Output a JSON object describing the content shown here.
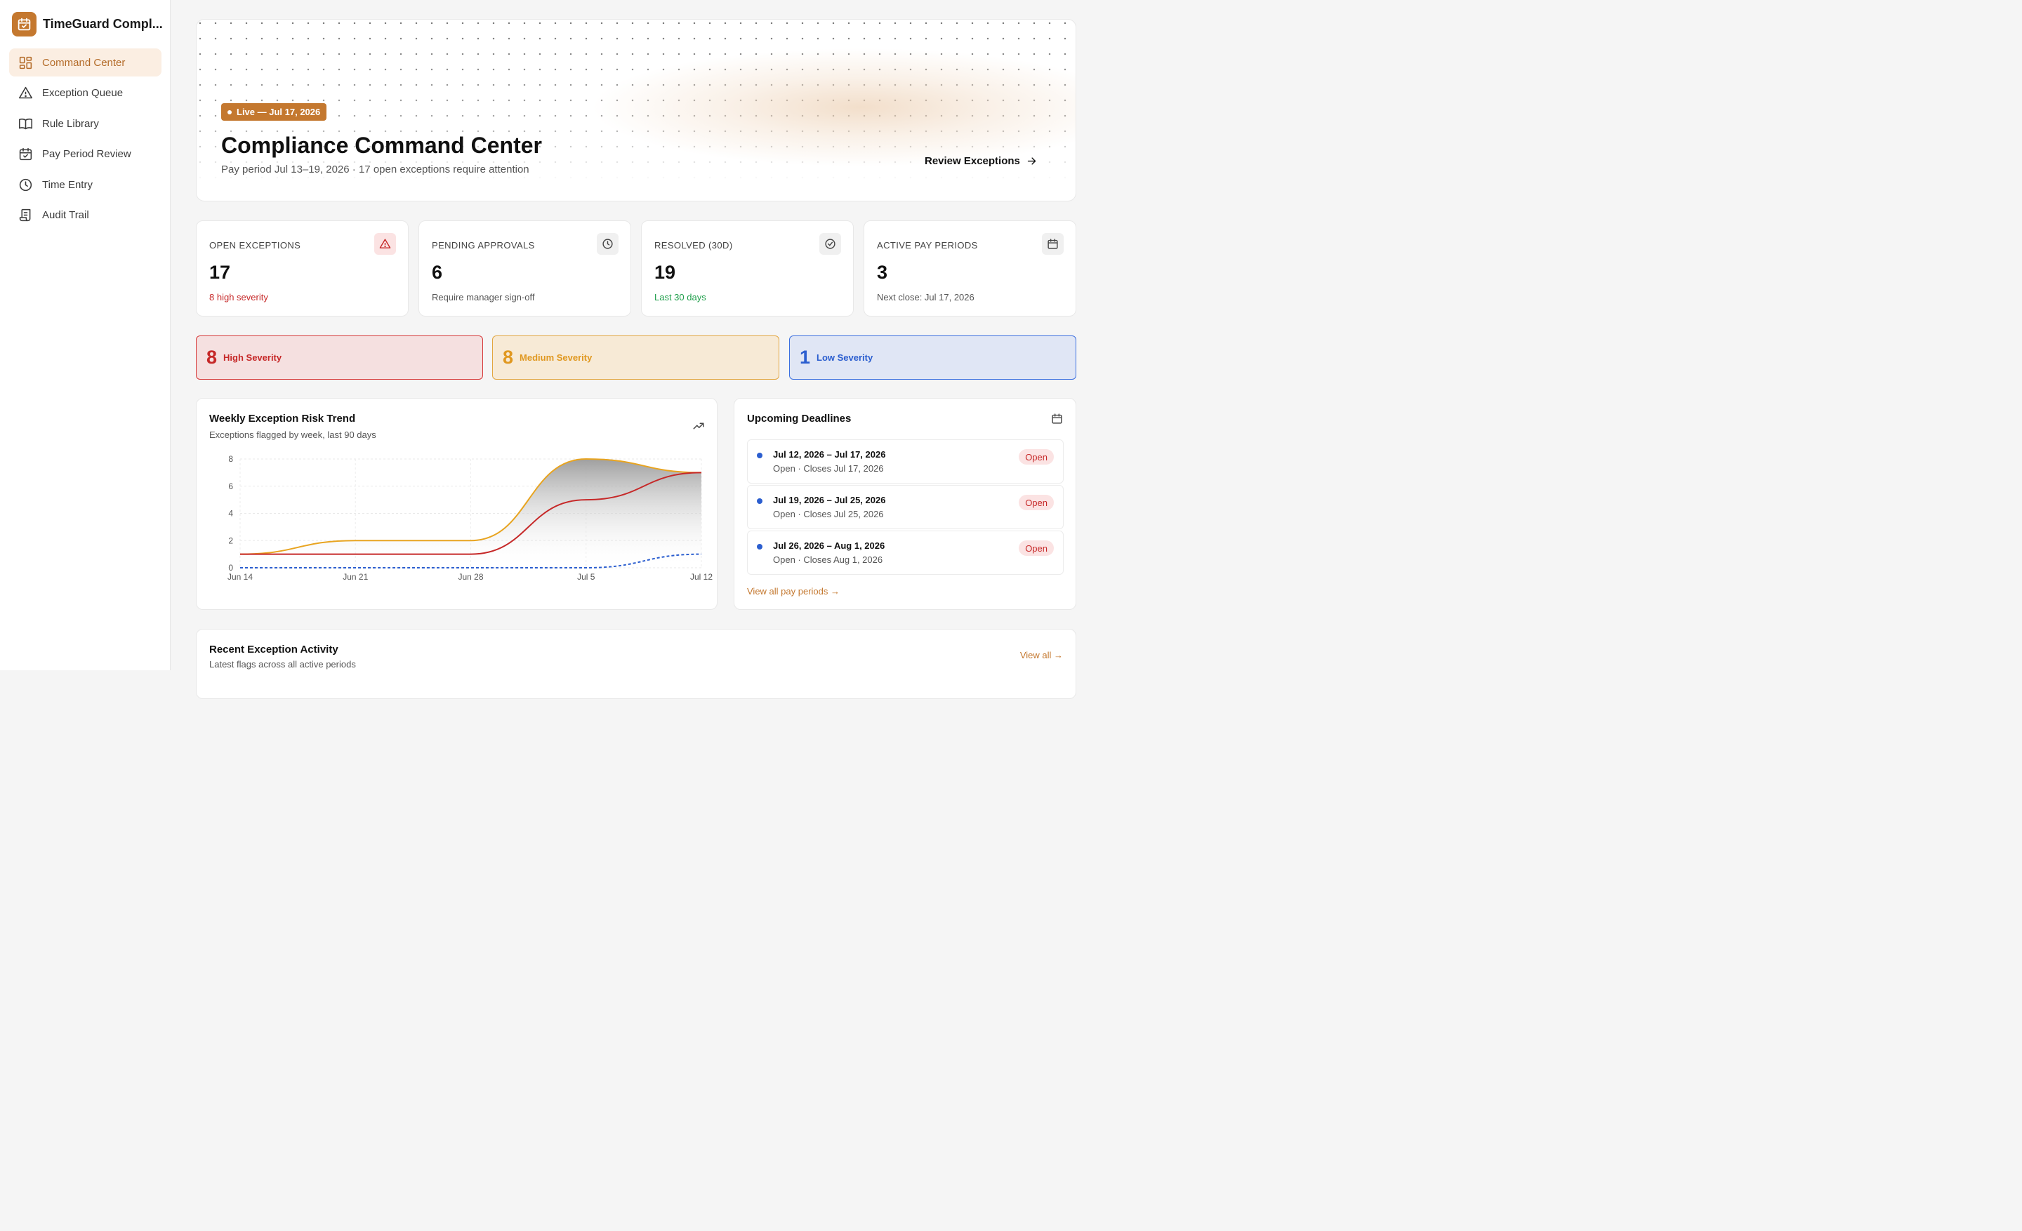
{
  "app": {
    "name": "TimeGuard Compl..."
  },
  "sidebar": {
    "items": [
      {
        "label": "Command Center",
        "icon": "grid-icon",
        "active": true
      },
      {
        "label": "Exception Queue",
        "icon": "warning-icon"
      },
      {
        "label": "Rule Library",
        "icon": "book-icon"
      },
      {
        "label": "Pay Period Review",
        "icon": "calendar-check-icon"
      },
      {
        "label": "Time Entry",
        "icon": "clock-icon"
      },
      {
        "label": "Audit Trail",
        "icon": "scroll-icon"
      }
    ]
  },
  "hero": {
    "badge": "Live — Jul 17, 2026",
    "title": "Compliance Command Center",
    "subtitle": "Pay period Jul 13–19, 2026 · 17 open exceptions require attention",
    "action": "Review Exceptions"
  },
  "stats": [
    {
      "label": "OPEN EXCEPTIONS",
      "value": "17",
      "sub": "8 high severity",
      "sub_color": "#c62828",
      "icon": "warning-icon"
    },
    {
      "label": "PENDING APPROVALS",
      "value": "6",
      "sub": "Require manager sign-off",
      "sub_color": "#555555",
      "icon": "clock-icon"
    },
    {
      "label": "RESOLVED (30D)",
      "value": "19",
      "sub": "Last 30 days",
      "sub_color": "#1e9e4a",
      "icon": "check-circle-icon"
    },
    {
      "label": "ACTIVE PAY PERIODS",
      "value": "3",
      "sub": "Next close: Jul 17, 2026",
      "sub_color": "#555555",
      "icon": "calendar-icon"
    }
  ],
  "severity": [
    {
      "count": "8",
      "label": "High Severity"
    },
    {
      "count": "8",
      "label": "Medium Severity"
    },
    {
      "count": "1",
      "label": "Low Severity"
    }
  ],
  "trend": {
    "title": "Weekly Exception Risk Trend",
    "subtitle": "Exceptions flagged by week, last 90 days",
    "icon": "trending-up-icon"
  },
  "chart_data": {
    "type": "area",
    "categories": [
      "Jun 14",
      "Jun 21",
      "Jun 28",
      "Jul 5",
      "Jul 12"
    ],
    "ylim": [
      0,
      8
    ],
    "yticks": [
      "0",
      "2",
      "4",
      "6",
      "8"
    ],
    "series": [
      {
        "values": [
          1,
          2,
          2,
          8,
          7
        ],
        "color": "#e8a420"
      },
      {
        "values": [
          1,
          1,
          1,
          5,
          7
        ],
        "color": "#c62828"
      },
      {
        "values": [
          0,
          0,
          0,
          0,
          1
        ],
        "color": "#2b5ecf"
      }
    ],
    "grid": true
  },
  "deadlines": {
    "title": "Upcoming Deadlines",
    "items": [
      {
        "range": "Jul 12, 2026 – Jul 17, 2026",
        "sub": "Open · Closes Jul 17, 2026",
        "badge": "Open"
      },
      {
        "range": "Jul 19, 2026 – Jul 25, 2026",
        "sub": "Open · Closes Jul 25, 2026",
        "badge": "Open"
      },
      {
        "range": "Jul 26, 2026 – Aug 1, 2026",
        "sub": "Open · Closes Aug 1, 2026",
        "badge": "Open"
      }
    ],
    "link": "View all pay periods →"
  },
  "recent": {
    "title": "Recent Exception Activity",
    "subtitle": "Latest flags across all active periods",
    "link": "View all →"
  }
}
